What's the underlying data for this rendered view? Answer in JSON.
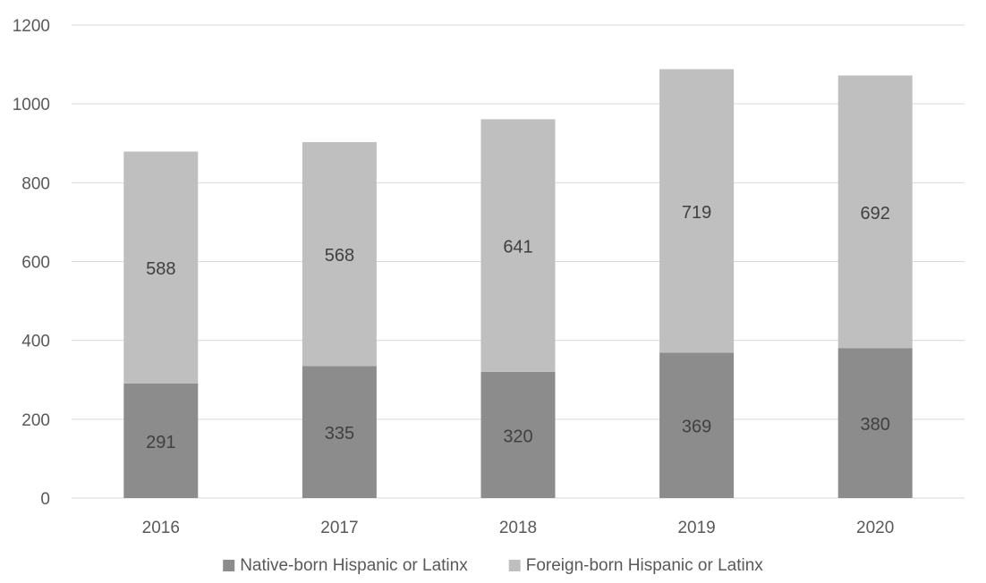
{
  "chart_data": {
    "type": "bar",
    "stacked": true,
    "title": "",
    "xlabel": "",
    "ylabel": "",
    "categories": [
      "2016",
      "2017",
      "2018",
      "2019",
      "2020"
    ],
    "ylim": [
      0,
      1200
    ],
    "yticks": [
      0,
      200,
      400,
      600,
      800,
      1000,
      1200
    ],
    "grid": true,
    "legend_position": "bottom",
    "series": [
      {
        "name": "Native-born Hispanic or Latinx",
        "values": [
          291,
          335,
          320,
          369,
          380
        ],
        "color": "#8c8c8c"
      },
      {
        "name": "Foreign-born Hispanic or Latinx",
        "values": [
          588,
          568,
          641,
          719,
          692
        ],
        "color": "#bfbfbf"
      }
    ]
  }
}
